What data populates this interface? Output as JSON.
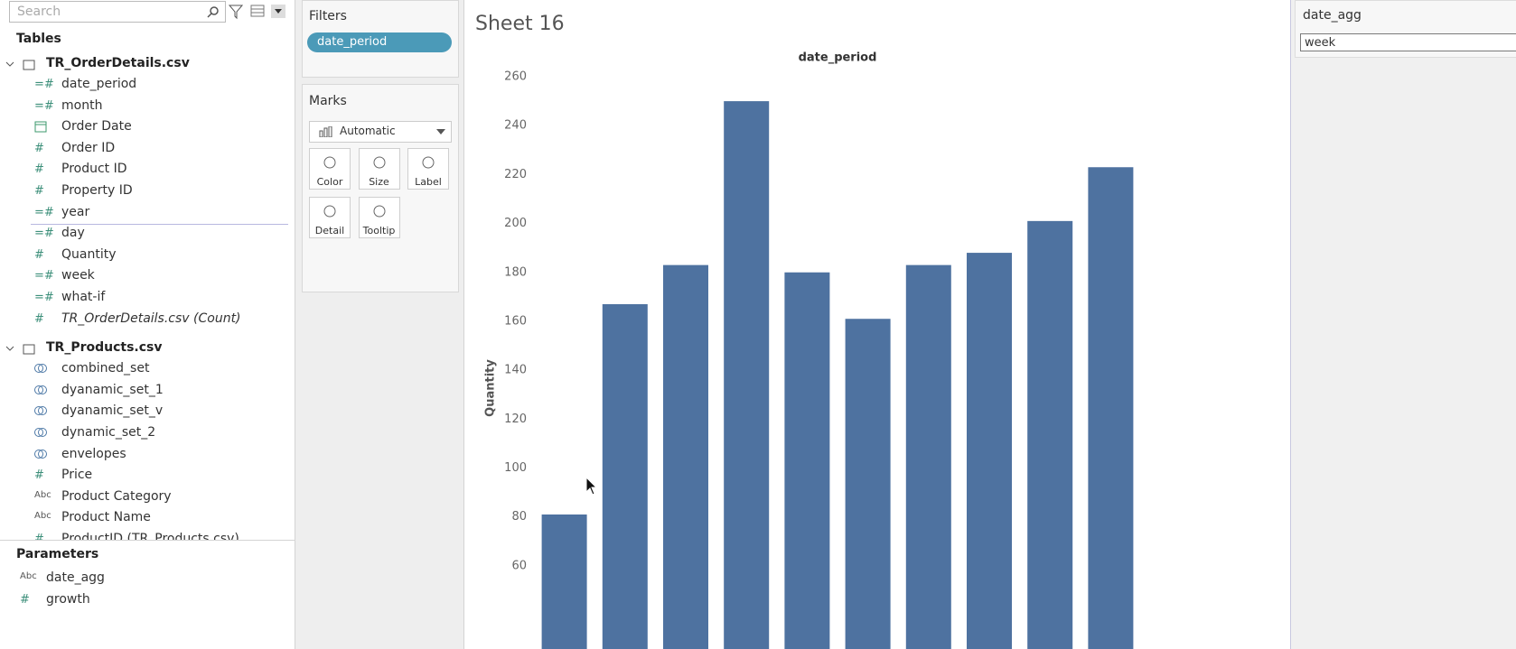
{
  "sidebar": {
    "search_placeholder": "Search",
    "tables_heading": "Tables",
    "tables": [
      {
        "name": "TR_OrderDetails.csv",
        "fields": [
          {
            "icon": "=#",
            "name": "date_period"
          },
          {
            "icon": "=#",
            "name": "month"
          },
          {
            "icon": "date",
            "name": "Order Date"
          },
          {
            "icon": "#",
            "name": "Order ID"
          },
          {
            "icon": "#",
            "name": "Product ID"
          },
          {
            "icon": "#",
            "name": "Property ID"
          },
          {
            "icon": "=#",
            "name": "year"
          },
          {
            "icon": "=#",
            "name": "day"
          },
          {
            "icon": "#",
            "name": "Quantity"
          },
          {
            "icon": "=#",
            "name": "week"
          },
          {
            "icon": "=#",
            "name": "what-if"
          },
          {
            "icon": "#",
            "name": "TR_OrderDetails.csv (Count)"
          }
        ]
      },
      {
        "name": "TR_Products.csv",
        "fields": [
          {
            "icon": "set",
            "name": "combined_set"
          },
          {
            "icon": "set",
            "name": "dyanamic_set_1"
          },
          {
            "icon": "set",
            "name": "dyanamic_set_v"
          },
          {
            "icon": "set",
            "name": "dynamic_set_2"
          },
          {
            "icon": "set",
            "name": "envelopes"
          },
          {
            "icon": "#",
            "name": "Price"
          },
          {
            "icon": "Abc",
            "name": "Product Category"
          },
          {
            "icon": "Abc",
            "name": "Product Name"
          },
          {
            "icon": "#",
            "name": "ProductID (TR_Products.csv)"
          }
        ]
      }
    ],
    "parameters_heading": "Parameters",
    "parameters": [
      {
        "icon": "Abc",
        "name": "date_agg"
      },
      {
        "icon": "#",
        "name": "growth"
      }
    ]
  },
  "filters": {
    "heading": "Filters",
    "pills": [
      "date_period"
    ]
  },
  "marks": {
    "heading": "Marks",
    "type": "Automatic",
    "buttons": [
      "Color",
      "Size",
      "Label",
      "Detail",
      "Tooltip"
    ]
  },
  "sheet": {
    "title": "Sheet 16"
  },
  "chart_data": {
    "type": "bar",
    "title": "date_period",
    "y_label": "Quantity",
    "categories": [
      null,
      null,
      null,
      null,
      null,
      null,
      null,
      null,
      null,
      null
    ],
    "values": [
      81,
      167,
      183,
      250,
      180,
      161,
      183,
      188,
      201,
      223
    ],
    "color": "#4e72a0",
    "ylim": [
      26,
      260
    ],
    "yticks": [
      60,
      80,
      100,
      120,
      140,
      160,
      180,
      200,
      220,
      240,
      260
    ],
    "grid": false
  },
  "parameter_control": {
    "label": "date_agg",
    "value": "week"
  }
}
